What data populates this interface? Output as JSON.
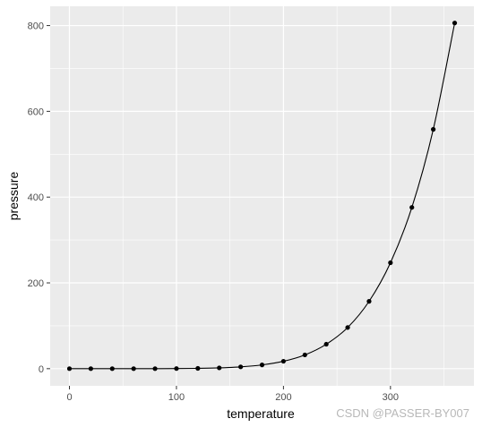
{
  "chart_data": {
    "type": "line",
    "xlabel": "temperature",
    "ylabel": "pressure",
    "xlim": [
      -18,
      378
    ],
    "ylim": [
      -40,
      845
    ],
    "x_ticks": [
      0,
      100,
      200,
      300
    ],
    "y_ticks": [
      0,
      200,
      400,
      600,
      800
    ],
    "x_minor": [
      50,
      150,
      250,
      350
    ],
    "y_minor": [
      100,
      300,
      500,
      700
    ],
    "grid": true,
    "background": "#EBEBEB",
    "grid_color": "#FFFFFF",
    "point_color": "#000000",
    "line_color": "#000000",
    "series": [
      {
        "x": [
          0,
          20,
          40,
          60,
          80,
          100,
          120,
          140,
          160,
          180,
          200,
          220,
          240,
          260,
          280,
          300,
          320,
          340,
          360
        ],
        "y": [
          0.0002,
          0.0012,
          0.006,
          0.03,
          0.09,
          0.27,
          0.75,
          1.85,
          4.2,
          8.8,
          17.3,
          32.1,
          57.0,
          96.0,
          157.0,
          247.0,
          376.0,
          558.0,
          806.0
        ]
      }
    ]
  },
  "watermark": "CSDN @PASSER-BY007"
}
